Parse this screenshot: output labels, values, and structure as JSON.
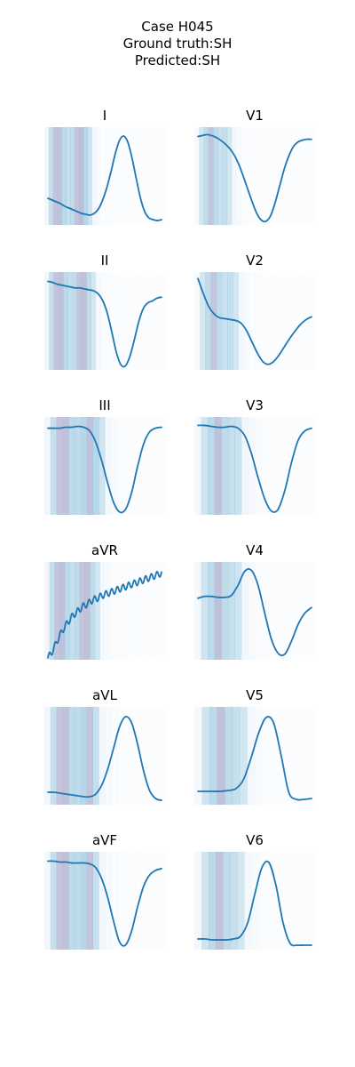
{
  "header": {
    "case": "Case H045",
    "ground_truth": "Ground truth:SH",
    "predicted": "Predicted:SH"
  },
  "colors": {
    "line": "#1f77b4",
    "attention_light": "#dbe9f6",
    "attention_mid": "#9ecae1",
    "attention_strong": "#b5b7d3"
  },
  "chart_data": [
    {
      "type": "line",
      "title": "I",
      "y": [
        0.3,
        0.28,
        0.26,
        0.24,
        0.21,
        0.19,
        0.17,
        0.15,
        0.13,
        0.12,
        0.11,
        0.13,
        0.18,
        0.28,
        0.42,
        0.6,
        0.8,
        0.95,
        1.0,
        0.93,
        0.75,
        0.52,
        0.3,
        0.15,
        0.08,
        0.06,
        0.05,
        0.06
      ],
      "ylim": [
        0,
        1.1
      ],
      "attention": [
        0.35,
        0.55,
        0.75,
        0.8,
        0.65,
        0.55,
        0.6,
        0.75,
        0.85,
        0.7,
        0.45,
        0.25,
        0.15,
        0.1,
        0.08,
        0.07,
        0.06,
        0.05,
        0.04,
        0.04,
        0.03,
        0.03,
        0.03,
        0.02,
        0.02,
        0.02,
        0.02,
        0.02
      ]
    },
    {
      "type": "line",
      "title": "V1",
      "y": [
        0.95,
        0.96,
        0.97,
        0.96,
        0.94,
        0.91,
        0.87,
        0.82,
        0.75,
        0.65,
        0.52,
        0.38,
        0.24,
        0.12,
        0.05,
        0.04,
        0.1,
        0.24,
        0.42,
        0.6,
        0.74,
        0.84,
        0.89,
        0.91,
        0.92,
        0.92
      ],
      "ylim": [
        0,
        1.05
      ],
      "attention": [
        0.2,
        0.4,
        0.6,
        0.75,
        0.6,
        0.5,
        0.55,
        0.4,
        0.25,
        0.15,
        0.1,
        0.07,
        0.05,
        0.04,
        0.04,
        0.03,
        0.03,
        0.03,
        0.02,
        0.02,
        0.02,
        0.02,
        0.02,
        0.02,
        0.02,
        0.02
      ]
    },
    {
      "type": "line",
      "title": "II",
      "y": [
        0.95,
        0.94,
        0.92,
        0.91,
        0.9,
        0.89,
        0.88,
        0.88,
        0.87,
        0.86,
        0.85,
        0.82,
        0.75,
        0.62,
        0.42,
        0.2,
        0.06,
        0.04,
        0.14,
        0.32,
        0.52,
        0.66,
        0.72,
        0.74,
        0.77,
        0.78
      ],
      "ylim": [
        0,
        1.05
      ],
      "attention": [
        0.35,
        0.55,
        0.75,
        0.8,
        0.65,
        0.55,
        0.6,
        0.75,
        0.8,
        0.6,
        0.4,
        0.2,
        0.12,
        0.08,
        0.06,
        0.05,
        0.05,
        0.04,
        0.04,
        0.03,
        0.03,
        0.03,
        0.02,
        0.02,
        0.02,
        0.02
      ]
    },
    {
      "type": "line",
      "title": "V2",
      "y": [
        0.98,
        0.82,
        0.68,
        0.6,
        0.56,
        0.55,
        0.54,
        0.53,
        0.5,
        0.42,
        0.3,
        0.18,
        0.09,
        0.06,
        0.09,
        0.16,
        0.25,
        0.34,
        0.42,
        0.49,
        0.54,
        0.57
      ],
      "ylim": [
        0,
        1.05
      ],
      "attention": [
        0.2,
        0.4,
        0.6,
        0.75,
        0.6,
        0.5,
        0.55,
        0.4,
        0.25,
        0.15,
        0.1,
        0.07,
        0.05,
        0.04,
        0.04,
        0.03,
        0.03,
        0.03,
        0.02,
        0.02,
        0.02,
        0.02
      ]
    },
    {
      "type": "line",
      "title": "III",
      "y": [
        0.93,
        0.93,
        0.93,
        0.94,
        0.94,
        0.95,
        0.94,
        0.9,
        0.78,
        0.58,
        0.34,
        0.13,
        0.03,
        0.06,
        0.24,
        0.52,
        0.76,
        0.89,
        0.93,
        0.94
      ],
      "ylim": [
        0,
        1.05
      ],
      "attention": [
        0.35,
        0.55,
        0.75,
        0.8,
        0.65,
        0.6,
        0.7,
        0.8,
        0.7,
        0.45,
        0.25,
        0.15,
        0.1,
        0.07,
        0.05,
        0.04,
        0.03,
        0.03,
        0.02,
        0.02
      ]
    },
    {
      "type": "line",
      "title": "V3",
      "y": [
        0.96,
        0.96,
        0.95,
        0.94,
        0.94,
        0.95,
        0.93,
        0.85,
        0.66,
        0.4,
        0.17,
        0.04,
        0.06,
        0.26,
        0.56,
        0.8,
        0.9,
        0.93
      ],
      "ylim": [
        0,
        1.05
      ],
      "attention": [
        0.25,
        0.45,
        0.65,
        0.8,
        0.6,
        0.55,
        0.5,
        0.35,
        0.2,
        0.12,
        0.08,
        0.05,
        0.04,
        0.03,
        0.03,
        0.02,
        0.02,
        0.02
      ]
    },
    {
      "type": "line",
      "title": "aVR",
      "y": [
        0.02,
        0.1,
        0.22,
        0.32,
        0.4,
        0.47,
        0.52,
        0.57,
        0.6,
        0.64,
        0.66,
        0.69,
        0.71,
        0.73,
        0.75,
        0.77,
        0.79,
        0.81,
        0.83,
        0.85,
        0.87,
        0.89,
        0.91,
        0.93
      ],
      "ylim": [
        0,
        1.05
      ],
      "wiggle": 0.035,
      "attention": [
        0.35,
        0.55,
        0.75,
        0.8,
        0.65,
        0.55,
        0.6,
        0.75,
        0.8,
        0.6,
        0.4,
        0.22,
        0.14,
        0.1,
        0.08,
        0.07,
        0.06,
        0.06,
        0.05,
        0.05,
        0.04,
        0.04,
        0.03,
        0.03
      ]
    },
    {
      "type": "line",
      "title": "V4",
      "y": [
        0.66,
        0.68,
        0.68,
        0.67,
        0.67,
        0.69,
        0.8,
        0.95,
        0.96,
        0.8,
        0.5,
        0.22,
        0.07,
        0.06,
        0.2,
        0.38,
        0.5,
        0.56
      ],
      "ylim": [
        0,
        1.05
      ],
      "attention": [
        0.25,
        0.45,
        0.65,
        0.8,
        0.6,
        0.55,
        0.45,
        0.3,
        0.18,
        0.1,
        0.07,
        0.05,
        0.04,
        0.03,
        0.03,
        0.02,
        0.02,
        0.02
      ]
    },
    {
      "type": "line",
      "title": "aVL",
      "y": [
        0.14,
        0.14,
        0.13,
        0.12,
        0.11,
        0.1,
        0.09,
        0.09,
        0.12,
        0.22,
        0.4,
        0.64,
        0.88,
        0.99,
        0.92,
        0.68,
        0.38,
        0.16,
        0.07,
        0.05
      ],
      "ylim": [
        0,
        1.1
      ],
      "attention": [
        0.35,
        0.55,
        0.75,
        0.8,
        0.65,
        0.6,
        0.7,
        0.75,
        0.55,
        0.3,
        0.18,
        0.12,
        0.08,
        0.06,
        0.05,
        0.04,
        0.03,
        0.03,
        0.02,
        0.02
      ]
    },
    {
      "type": "line",
      "title": "V5",
      "y": [
        0.15,
        0.15,
        0.15,
        0.15,
        0.16,
        0.18,
        0.28,
        0.52,
        0.8,
        0.98,
        0.92,
        0.55,
        0.14,
        0.06,
        0.06,
        0.07
      ],
      "ylim": [
        0,
        1.1
      ],
      "attention": [
        0.25,
        0.45,
        0.65,
        0.8,
        0.6,
        0.55,
        0.4,
        0.25,
        0.15,
        0.1,
        0.06,
        0.04,
        0.03,
        0.03,
        0.02,
        0.02
      ]
    },
    {
      "type": "line",
      "title": "aVF",
      "y": [
        0.95,
        0.95,
        0.94,
        0.94,
        0.93,
        0.93,
        0.93,
        0.92,
        0.88,
        0.76,
        0.56,
        0.3,
        0.08,
        0.05,
        0.2,
        0.46,
        0.68,
        0.8,
        0.85,
        0.87
      ],
      "ylim": [
        0,
        1.05
      ],
      "attention": [
        0.35,
        0.55,
        0.75,
        0.8,
        0.65,
        0.6,
        0.7,
        0.75,
        0.55,
        0.3,
        0.18,
        0.12,
        0.08,
        0.06,
        0.05,
        0.04,
        0.03,
        0.03,
        0.02,
        0.02
      ]
    },
    {
      "type": "line",
      "title": "V6",
      "y": [
        0.12,
        0.12,
        0.11,
        0.11,
        0.11,
        0.12,
        0.15,
        0.3,
        0.62,
        0.92,
        0.98,
        0.72,
        0.3,
        0.07,
        0.05,
        0.05,
        0.05
      ],
      "ylim": [
        0,
        1.1
      ],
      "attention": [
        0.25,
        0.45,
        0.65,
        0.8,
        0.6,
        0.55,
        0.4,
        0.25,
        0.15,
        0.1,
        0.06,
        0.04,
        0.03,
        0.03,
        0.02,
        0.02,
        0.02
      ]
    }
  ]
}
